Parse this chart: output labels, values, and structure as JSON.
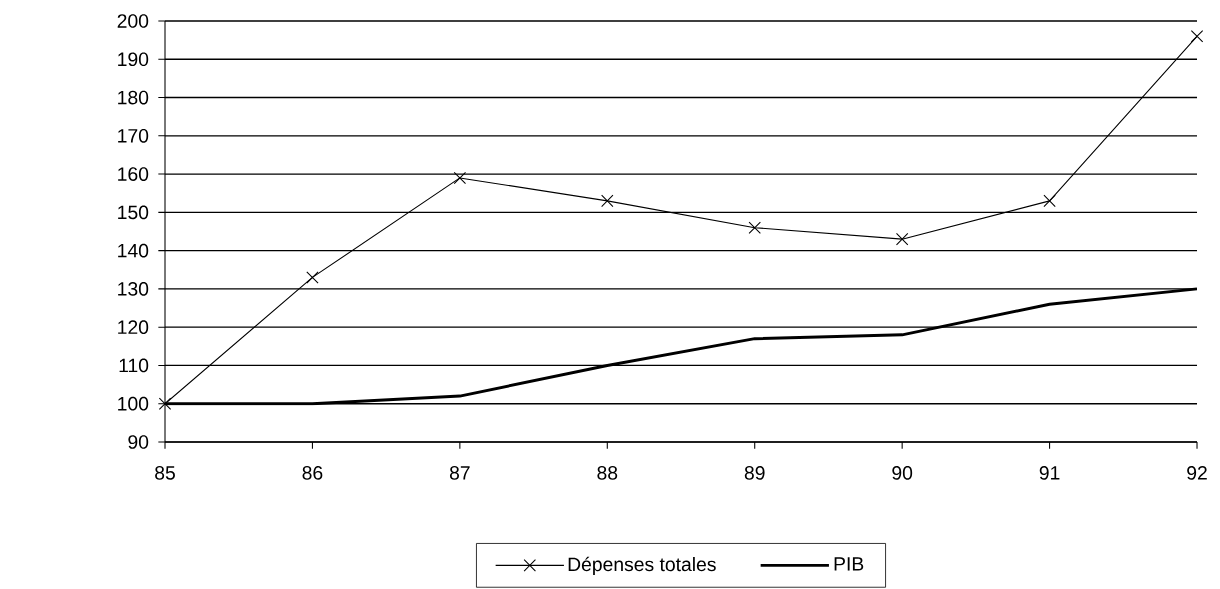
{
  "chart_data": {
    "type": "line",
    "x": [
      85,
      86,
      87,
      88,
      89,
      90,
      91,
      92
    ],
    "series": [
      {
        "name": "Dépenses totales",
        "color": "#000000",
        "marker": "cross",
        "values": [
          100,
          133,
          159,
          153,
          146,
          143,
          153,
          196
        ]
      },
      {
        "name": "PIB",
        "color": "#000000",
        "marker": "none",
        "values": [
          100,
          100,
          102,
          110,
          117,
          118,
          126,
          130
        ]
      }
    ],
    "xlim": [
      85,
      92
    ],
    "xticks": [
      85,
      86,
      87,
      88,
      89,
      90,
      91,
      92
    ],
    "ylim": [
      90,
      200
    ],
    "yticks": [
      90,
      100,
      110,
      120,
      130,
      140,
      150,
      160,
      170,
      180,
      190,
      200
    ],
    "grid": "y",
    "legend": "bottom",
    "line_style": "solid"
  }
}
